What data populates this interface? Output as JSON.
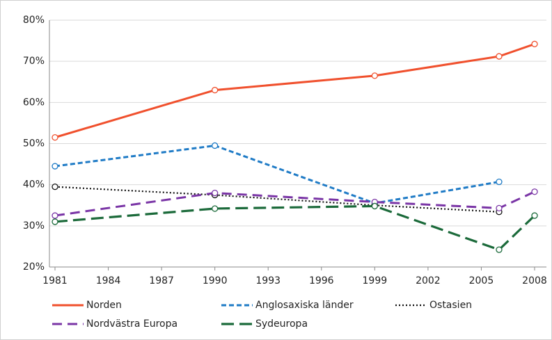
{
  "chart_data": {
    "type": "line",
    "x": [
      1981,
      1990,
      1999,
      2006,
      2008
    ],
    "xlim": [
      1981,
      2008
    ],
    "xticks": [
      1981,
      1984,
      1987,
      1990,
      1993,
      1996,
      1999,
      2002,
      2005,
      2008
    ],
    "ylim": [
      20,
      80
    ],
    "yticks": [
      {
        "value": 20,
        "label": "20%"
      },
      {
        "value": 30,
        "label": "30%"
      },
      {
        "value": 40,
        "label": "40%"
      },
      {
        "value": 50,
        "label": "50%"
      },
      {
        "value": 60,
        "label": "60%"
      },
      {
        "value": 70,
        "label": "70%"
      },
      {
        "value": 80,
        "label": "80%"
      }
    ],
    "grid": true,
    "legend": "bottom",
    "series": [
      {
        "name": "Norden",
        "color": "#f0502d",
        "dash": "solid",
        "values": [
          51.5,
          63,
          66.5,
          71.2,
          74.2
        ]
      },
      {
        "name": "Anglosaxiska länder",
        "color": "#1f7bc6",
        "dash": "dashed",
        "values": [
          44.5,
          49.5,
          35.5,
          40.7,
          null
        ]
      },
      {
        "name": "Ostasien",
        "color": "#111111",
        "dash": "dotted",
        "values": [
          39.5,
          37.5,
          35,
          33.4,
          null
        ]
      },
      {
        "name": "Nordvästra Europa",
        "color": "#7a35a6",
        "dash": "longdash",
        "values": [
          32.5,
          38,
          35.8,
          34.3,
          38.3
        ]
      },
      {
        "name": "Sydeuropa",
        "color": "#1b6a3a",
        "dash": "longerdash",
        "values": [
          31,
          34.2,
          34.8,
          24.2,
          32.5
        ]
      }
    ]
  }
}
